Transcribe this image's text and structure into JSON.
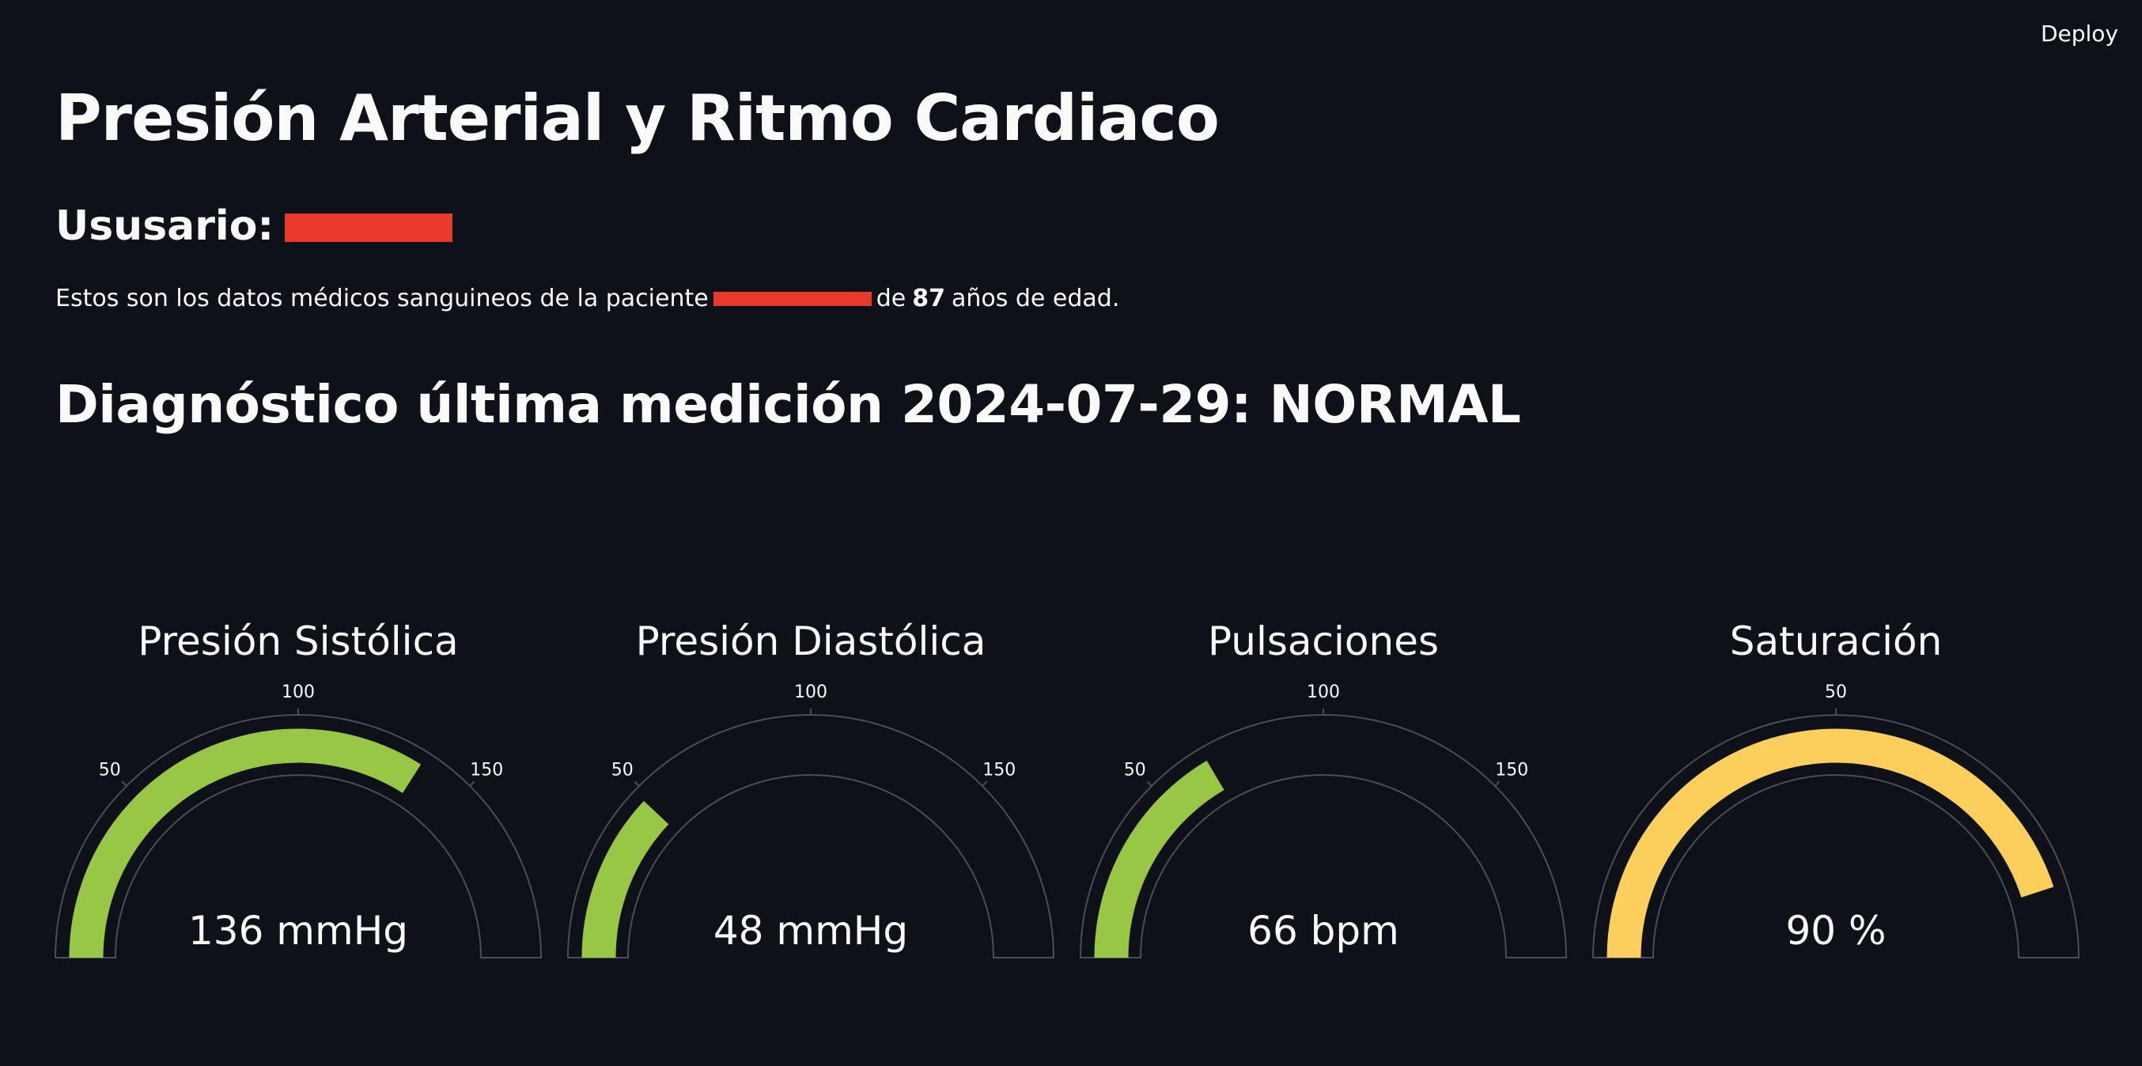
{
  "header": {
    "deploy_label": "Deploy"
  },
  "page": {
    "title": "Presión Arterial y Ritmo Cardiaco",
    "user_label": "Ususario:",
    "description_prefix": "Estos son los datos médicos sanguineos de la paciente",
    "description_mid": "de",
    "age": "87",
    "description_suffix": "años de edad.",
    "diagnosis": "Diagnóstico última medición 2024-07-29: NORMAL"
  },
  "colors": {
    "background": "#0e1117",
    "green": "#98c746",
    "yellow": "#fbcf5b",
    "redaction": "#e8392a",
    "outline": "#4a4e57"
  },
  "gauges": [
    {
      "title": "Presión Sistólica",
      "value": 136,
      "display": "136 mmHg",
      "max": 200,
      "ticks": [
        50,
        100,
        150
      ],
      "color": "#98c746"
    },
    {
      "title": "Presión Diastólica",
      "value": 48,
      "display": "48 mmHg",
      "max": 200,
      "ticks": [
        50,
        100,
        150
      ],
      "color": "#98c746"
    },
    {
      "title": "Pulsaciones",
      "value": 66,
      "display": "66 bpm",
      "max": 200,
      "ticks": [
        50,
        100,
        150
      ],
      "color": "#98c746"
    },
    {
      "title": "Saturación",
      "value": 90,
      "display": "90 %",
      "max": 100,
      "ticks": [
        50
      ],
      "color": "#fbcf5b"
    }
  ]
}
